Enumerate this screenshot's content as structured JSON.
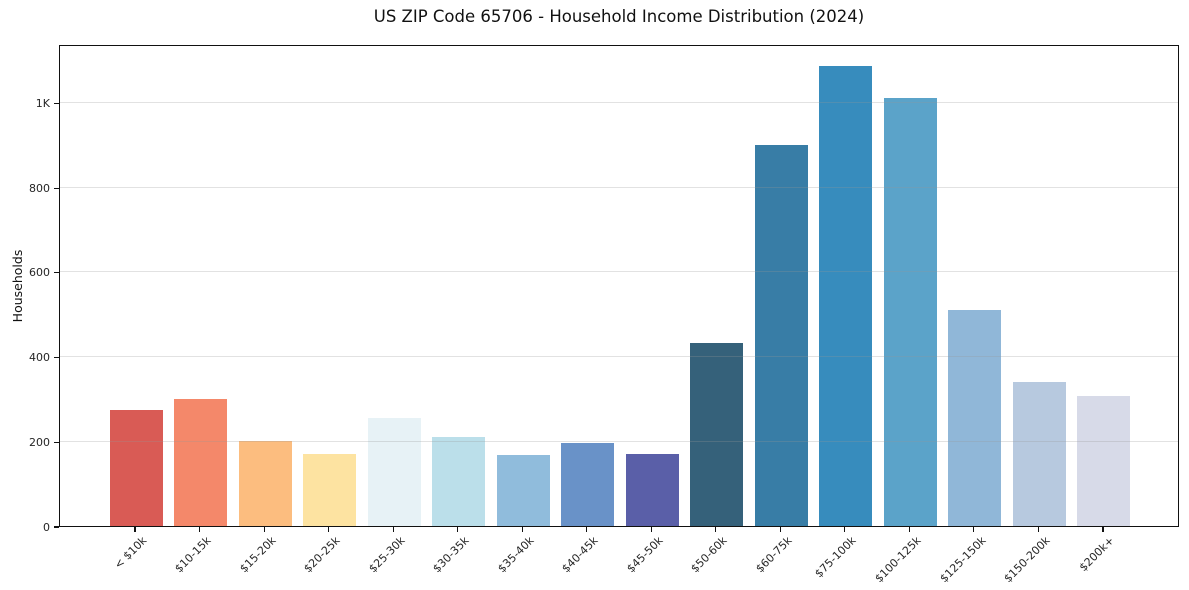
{
  "chart_data": {
    "type": "bar",
    "title": "US ZIP Code 65706 - Household Income Distribution (2024)",
    "xlabel": "",
    "ylabel": "Households",
    "ylim": [
      0,
      1138
    ],
    "grid": "horizontal-only",
    "legend": "none",
    "yticks": [
      {
        "value": 0,
        "label": "0"
      },
      {
        "value": 200,
        "label": "200"
      },
      {
        "value": 400,
        "label": "400"
      },
      {
        "value": 600,
        "label": "600"
      },
      {
        "value": 800,
        "label": "800"
      },
      {
        "value": 1000,
        "label": "1K"
      }
    ],
    "categories": [
      "< $10k",
      "$10-15k",
      "$15-20k",
      "$20-25k",
      "$25-30k",
      "$30-35k",
      "$35-40k",
      "$40-45k",
      "$45-50k",
      "$50-60k",
      "$60-75k",
      "$75-100k",
      "$100-125k",
      "$125-150k",
      "$150-200k",
      "$200k+"
    ],
    "values": [
      275,
      300,
      200,
      170,
      255,
      210,
      168,
      197,
      170,
      433,
      900,
      1085,
      1010,
      510,
      340,
      308
    ],
    "bar_colors": [
      "#d95b55",
      "#f4886a",
      "#fcbd7f",
      "#fde3a1",
      "#e7f2f6",
      "#bbdfea",
      "#90bcdc",
      "#6992c8",
      "#5a5fa8",
      "#35617a",
      "#387da6",
      "#378cbd",
      "#5ba3c9",
      "#90b7d8",
      "#b7c9df",
      "#d7dae8"
    ]
  },
  "colors": {
    "spine": "#111111",
    "grid": "#e6e6e6",
    "background": "#ffffff"
  }
}
